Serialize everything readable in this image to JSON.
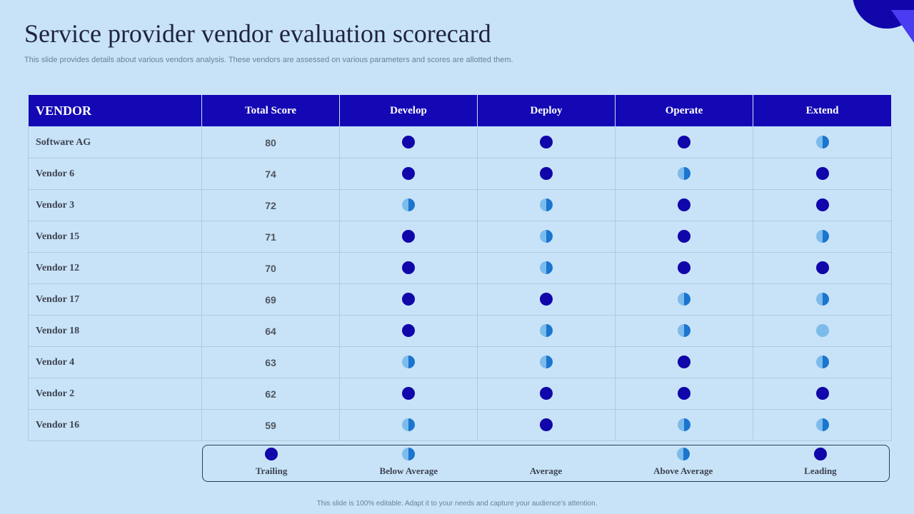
{
  "slide": {
    "title": "Service provider vendor evaluation scorecard",
    "subtitle": "This slide provides details about various vendors analysis. These vendors are assessed on various parameters and scores are allotted them.",
    "footer": "This slide is 100% editable. Adapt it to your needs and capture your audience’s attention."
  },
  "colors": {
    "background": "#c8e3f8",
    "header": "#1407b4",
    "rating_full": "#1006aa",
    "rating_half_light": "#7dbbeb",
    "rating_half_dark": "#1a75cf"
  },
  "table": {
    "columns": [
      "VENDOR",
      "Total Score",
      "Develop",
      "Deploy",
      "Operate",
      "Extend"
    ],
    "rows": [
      {
        "vendor": "Software AG",
        "score": "80",
        "ratings": [
          "full",
          "full",
          "full",
          "half"
        ]
      },
      {
        "vendor": "Vendor 6",
        "score": "74",
        "ratings": [
          "full",
          "full",
          "half",
          "full"
        ]
      },
      {
        "vendor": "Vendor 3",
        "score": "72",
        "ratings": [
          "half",
          "half",
          "full",
          "full"
        ]
      },
      {
        "vendor": "Vendor 15",
        "score": "71",
        "ratings": [
          "full",
          "half",
          "full",
          "half"
        ]
      },
      {
        "vendor": "Vendor 12",
        "score": "70",
        "ratings": [
          "full",
          "half",
          "full",
          "full"
        ]
      },
      {
        "vendor": "Vendor 17",
        "score": "69",
        "ratings": [
          "full",
          "full",
          "half",
          "half"
        ]
      },
      {
        "vendor": "Vendor 18",
        "score": "64",
        "ratings": [
          "full",
          "half",
          "half",
          "light"
        ]
      },
      {
        "vendor": "Vendor 4",
        "score": "63",
        "ratings": [
          "half",
          "half",
          "full",
          "half"
        ]
      },
      {
        "vendor": "Vendor 2",
        "score": "62",
        "ratings": [
          "full",
          "full",
          "full",
          "full"
        ]
      },
      {
        "vendor": "Vendor 16",
        "score": "59",
        "ratings": [
          "half",
          "full",
          "half",
          "half"
        ]
      }
    ]
  },
  "legend": [
    {
      "label": "Trailing",
      "icon": "full"
    },
    {
      "label": "Below Average",
      "icon": "half"
    },
    {
      "label": "Average",
      "icon": "none"
    },
    {
      "label": "Above Average",
      "icon": "half"
    },
    {
      "label": "Leading",
      "icon": "full"
    }
  ]
}
